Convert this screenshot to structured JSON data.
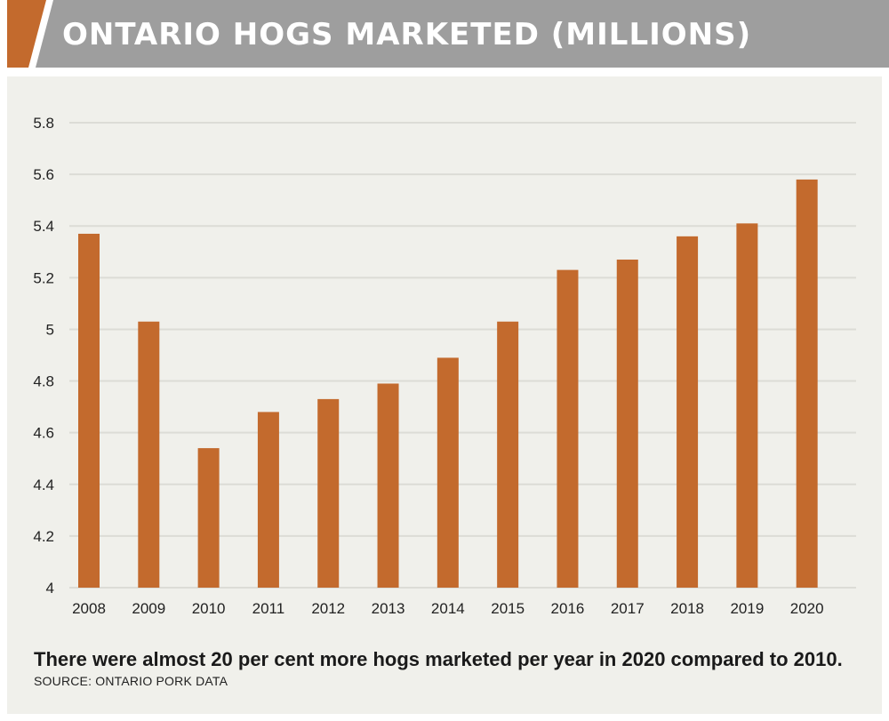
{
  "header": {
    "title": "ONTARIO HOGS MARKETED (MILLIONS)"
  },
  "colors": {
    "accent": "#c36a2d",
    "banner": "#9e9e9e",
    "panel": "#f0f0eb",
    "grid": "#dcdcd6"
  },
  "chart_data": {
    "type": "bar",
    "categories": [
      "2008",
      "2009",
      "2010",
      "2011",
      "2012",
      "2013",
      "2014",
      "2015",
      "2016",
      "2017",
      "2018",
      "2019",
      "2020"
    ],
    "values": [
      5.37,
      5.03,
      4.54,
      4.68,
      4.73,
      4.79,
      4.89,
      5.03,
      5.23,
      5.27,
      5.36,
      5.41,
      5.58
    ],
    "yticks": [
      "4",
      "4.2",
      "4.4",
      "4.6",
      "4.8",
      "5",
      "5.2",
      "5.4",
      "5.6",
      "5.8"
    ],
    "ylim": [
      4,
      5.8
    ],
    "grid": true,
    "legend": "none",
    "title": "ONTARIO HOGS MARKETED (MILLIONS)",
    "xlabel": "",
    "ylabel": ""
  },
  "caption": "There were almost 20 per cent more hogs marketed per year in 2020 compared to 2010.",
  "source": "SOURCE: ONTARIO PORK DATA"
}
